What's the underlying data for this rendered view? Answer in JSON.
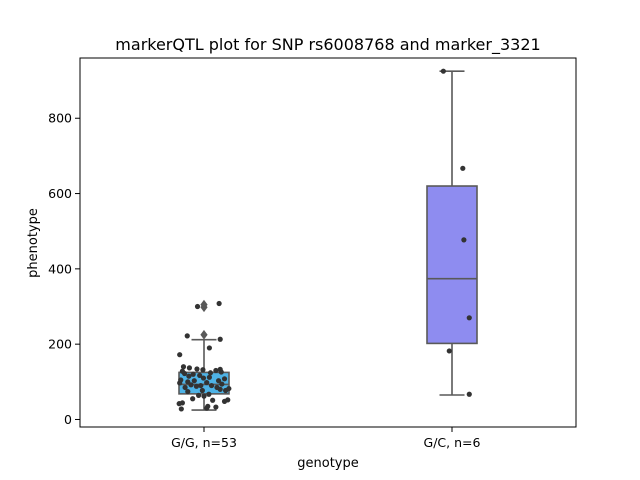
{
  "chart_data": {
    "type": "box",
    "title": "markerQTL plot for SNP rs6008768 and marker_3321",
    "xlabel": "genotype",
    "ylabel": "phenotype",
    "ylim": [
      -20,
      960
    ],
    "yticks": [
      0,
      200,
      400,
      600,
      800
    ],
    "grid": false,
    "categories": [
      "G/G, n=53",
      "G/C, n=6"
    ],
    "series": [
      {
        "category": "G/G, n=53",
        "color": "#4eb3e6",
        "box": {
          "whisker_low": 25,
          "q1": 68,
          "median": 93,
          "q3": 125,
          "whisker_high": 212
        },
        "outliers": [
          225,
          298,
          305
        ],
        "points": [
          {
            "dx": -0.42,
            "y": 28
          },
          {
            "dx": 0.05,
            "y": 30
          },
          {
            "dx": 0.22,
            "y": 33
          },
          {
            "dx": 0.07,
            "y": 35
          },
          {
            "dx": -0.46,
            "y": 42
          },
          {
            "dx": -0.4,
            "y": 44
          },
          {
            "dx": 0.38,
            "y": 48
          },
          {
            "dx": 0.44,
            "y": 52
          },
          {
            "dx": 0.16,
            "y": 51
          },
          {
            "dx": -0.21,
            "y": 55
          },
          {
            "dx": 0.0,
            "y": 62
          },
          {
            "dx": -0.1,
            "y": 64
          },
          {
            "dx": 0.09,
            "y": 67
          },
          {
            "dx": -0.3,
            "y": 74
          },
          {
            "dx": -0.03,
            "y": 77
          },
          {
            "dx": 0.4,
            "y": 77
          },
          {
            "dx": 0.3,
            "y": 80
          },
          {
            "dx": 0.46,
            "y": 82
          },
          {
            "dx": -0.35,
            "y": 85
          },
          {
            "dx": 0.24,
            "y": 85
          },
          {
            "dx": -0.14,
            "y": 88
          },
          {
            "dx": -0.06,
            "y": 90
          },
          {
            "dx": 0.14,
            "y": 90
          },
          {
            "dx": -0.24,
            "y": 92
          },
          {
            "dx": 0.33,
            "y": 94
          },
          {
            "dx": -0.45,
            "y": 97
          },
          {
            "dx": 0.05,
            "y": 98
          },
          {
            "dx": -0.3,
            "y": 100
          },
          {
            "dx": -0.18,
            "y": 103
          },
          {
            "dx": 0.27,
            "y": 103
          },
          {
            "dx": -0.43,
            "y": 105
          },
          {
            "dx": 0.38,
            "y": 108
          },
          {
            "dx": -0.01,
            "y": 110
          },
          {
            "dx": 0.1,
            "y": 112
          },
          {
            "dx": -0.28,
            "y": 115
          },
          {
            "dx": -0.08,
            "y": 117
          },
          {
            "dx": -0.2,
            "y": 120
          },
          {
            "dx": -0.36,
            "y": 122
          },
          {
            "dx": 0.12,
            "y": 124
          },
          {
            "dx": 0.32,
            "y": 126
          },
          {
            "dx": -0.4,
            "y": 128
          },
          {
            "dx": 0.22,
            "y": 130
          },
          {
            "dx": -0.02,
            "y": 132
          },
          {
            "dx": -0.13,
            "y": 134
          },
          {
            "dx": -0.27,
            "y": 137
          },
          {
            "dx": -0.38,
            "y": 140
          },
          {
            "dx": 0.3,
            "y": 133
          },
          {
            "dx": -0.45,
            "y": 172
          },
          {
            "dx": 0.1,
            "y": 190
          },
          {
            "dx": -0.31,
            "y": 222
          },
          {
            "dx": 0.3,
            "y": 213
          },
          {
            "dx": -0.12,
            "y": 300
          },
          {
            "dx": 0.28,
            "y": 308
          }
        ]
      },
      {
        "category": "G/C, n=6",
        "color": "#8e8cf0",
        "box": {
          "whisker_low": 65,
          "q1": 202,
          "median": 374,
          "q3": 620,
          "whisker_high": 925
        },
        "outliers": [],
        "points": [
          {
            "dx": -0.16,
            "y": 925
          },
          {
            "dx": 0.2,
            "y": 667
          },
          {
            "dx": 0.22,
            "y": 477
          },
          {
            "dx": 0.32,
            "y": 270
          },
          {
            "dx": -0.05,
            "y": 182
          },
          {
            "dx": 0.32,
            "y": 67
          }
        ]
      }
    ]
  }
}
